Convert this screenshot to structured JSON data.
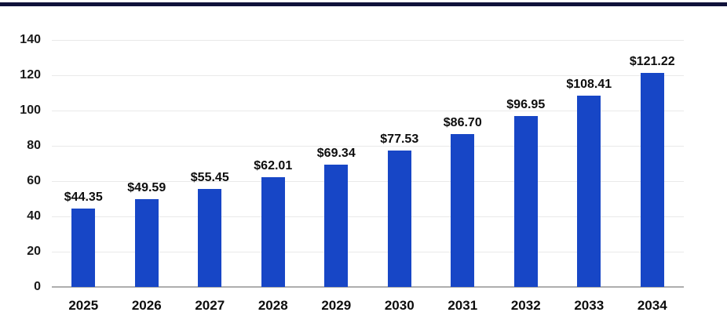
{
  "chart_data": {
    "type": "bar",
    "categories": [
      "2025",
      "2026",
      "2027",
      "2028",
      "2029",
      "2030",
      "2031",
      "2032",
      "2033",
      "2034"
    ],
    "values": [
      44.35,
      49.59,
      55.45,
      62.01,
      69.34,
      77.53,
      86.7,
      96.95,
      108.41,
      121.22
    ],
    "value_labels": [
      "$44.35",
      "$49.59",
      "$55.45",
      "$62.01",
      "$69.34",
      "$77.53",
      "$86.70",
      "$96.95",
      "$108.41",
      "$121.22"
    ],
    "title": "",
    "xlabel": "",
    "ylabel": "",
    "ylim": [
      0,
      140
    ],
    "yticks": [
      0,
      20,
      40,
      60,
      80,
      100,
      120,
      140
    ],
    "grid": true,
    "legend": false,
    "colors": {
      "bar": "#1746c6",
      "gridline": "#e9e9e9",
      "baseline": "#aeaeae",
      "text": "#0d0d0d",
      "top_border": "#10123a"
    }
  }
}
